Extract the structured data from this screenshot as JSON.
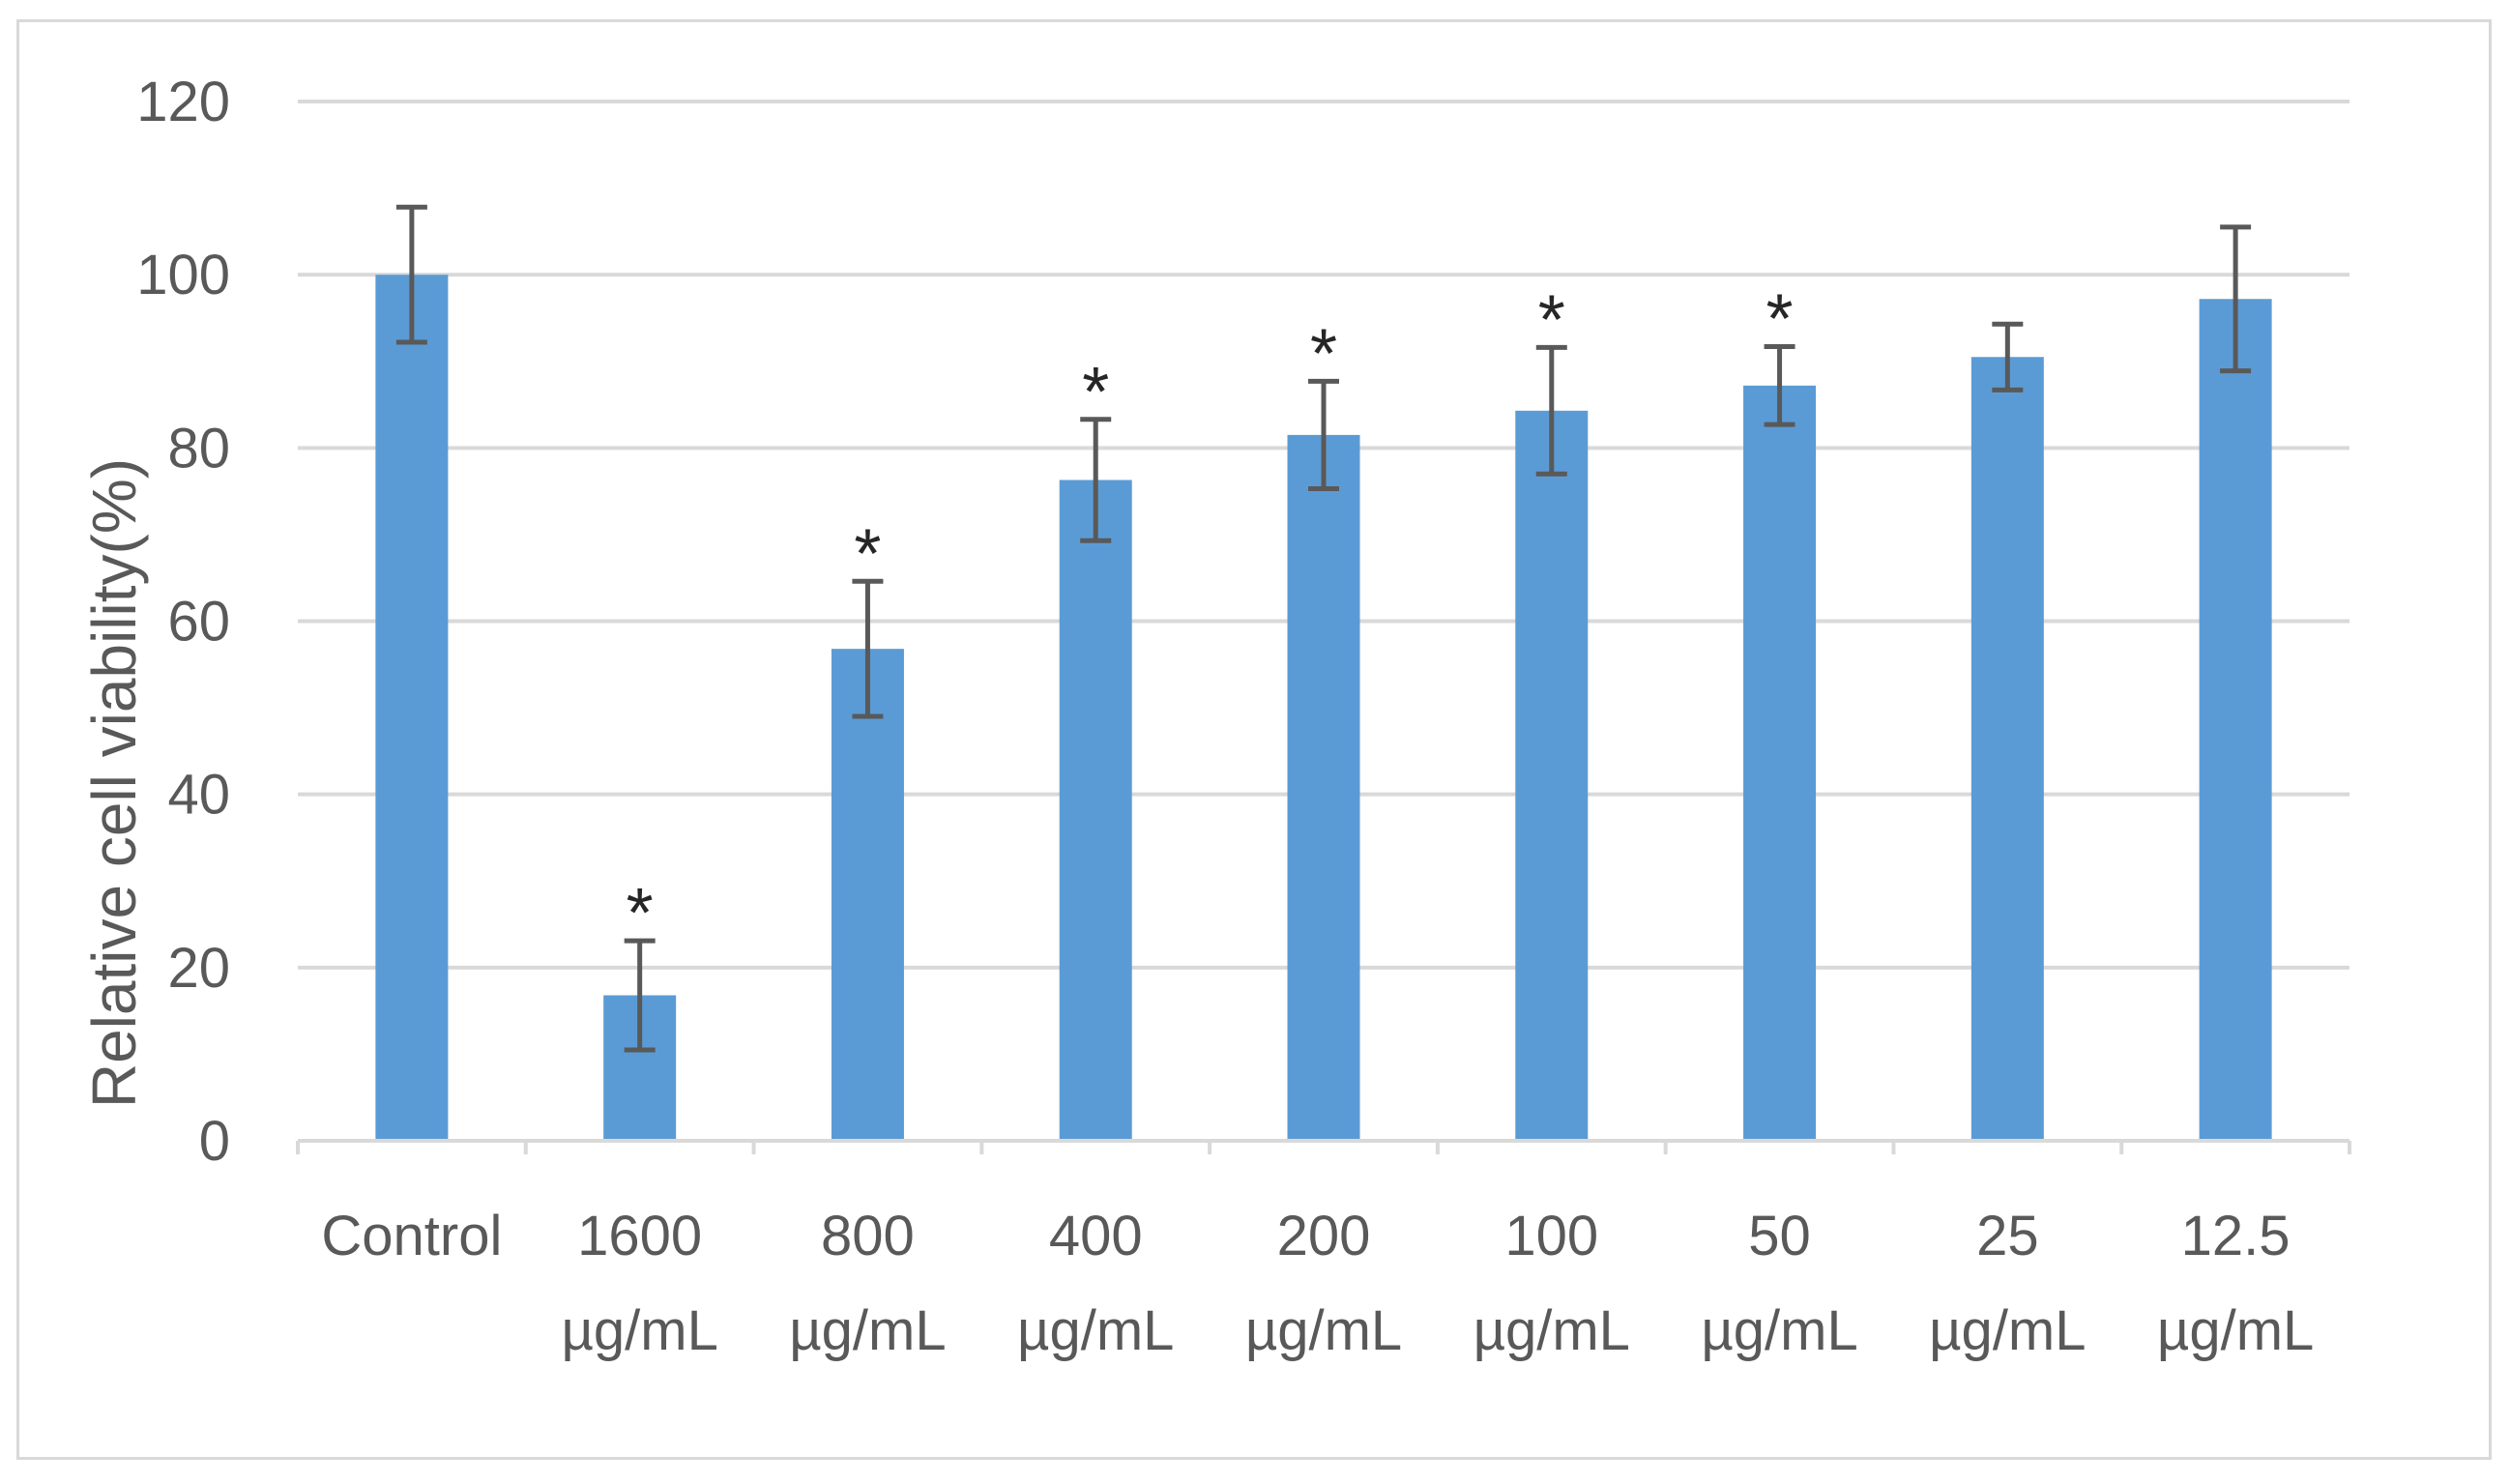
{
  "chart_data": {
    "type": "bar",
    "title": "",
    "xlabel": "",
    "ylabel": "Relative cell viability(%)",
    "ylim": [
      0,
      120
    ],
    "yticks": [
      0,
      20,
      40,
      60,
      80,
      100,
      120
    ],
    "grid": true,
    "categories": [
      [
        "Control"
      ],
      [
        "1600",
        "µg/mL"
      ],
      [
        "800",
        "µg/mL"
      ],
      [
        "400",
        "µg/mL"
      ],
      [
        "200",
        "µg/mL"
      ],
      [
        "100",
        "µg/mL"
      ],
      [
        "50",
        "µg/mL"
      ],
      [
        "25",
        "µg/mL"
      ],
      [
        "12.5",
        "µg/mL"
      ]
    ],
    "series": [
      {
        "name": "Relative cell viability",
        "values": [
          100,
          16.8,
          56.8,
          76.3,
          81.5,
          84.3,
          87.2,
          90.5,
          97.2
        ],
        "error": [
          7.8,
          6.3,
          7.8,
          7.0,
          6.2,
          7.3,
          4.5,
          3.8,
          8.3
        ],
        "significance": [
          "",
          "*",
          "*",
          "*",
          "*",
          "*",
          "*",
          "",
          ""
        ]
      }
    ],
    "colors": {
      "bar": "#5b9bd5",
      "error_bar": "#595959",
      "grid": "#d9d9d9",
      "axis": "#d9d9d9"
    }
  }
}
